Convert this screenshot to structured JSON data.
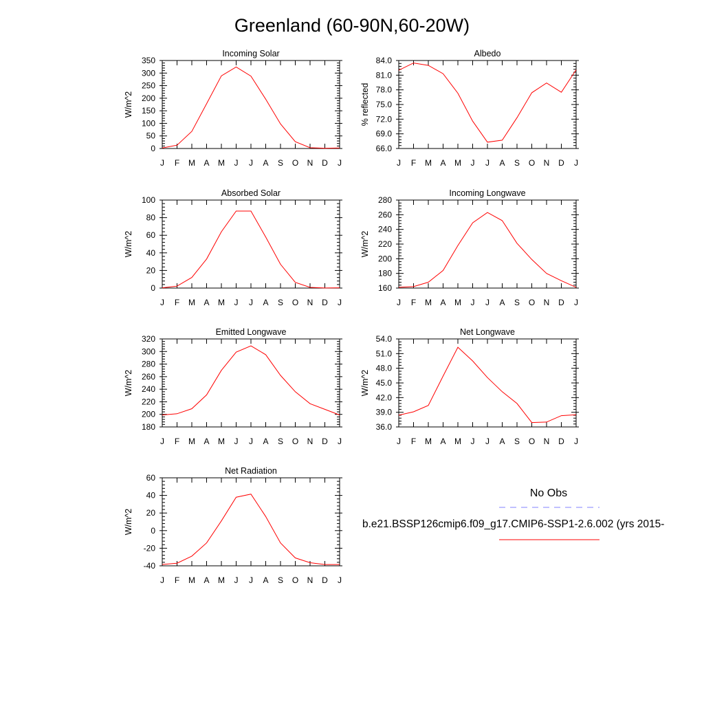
{
  "figure": {
    "title": "Greenland (60-90N,60-20W)",
    "months": [
      "J",
      "F",
      "M",
      "A",
      "M",
      "J",
      "J",
      "A",
      "S",
      "O",
      "N",
      "D",
      "J"
    ],
    "legend": {
      "obs_label": "No Obs",
      "obs_color": "#8080ff",
      "model_label": "b.e21.BSSP126cmip6.f09_g17.CMIP6-SSP1-2.6.002 (yrs 2015-",
      "model_color": "#ff0000"
    }
  },
  "chart_data": [
    {
      "type": "line",
      "title": "Incoming Solar",
      "ylabel": "W/m^2",
      "ylim": [
        0,
        350
      ],
      "yticks": [
        "0",
        "50",
        "100",
        "150",
        "200",
        "250",
        "300",
        "350"
      ],
      "series": [
        {
          "values": [
            2,
            13,
            68,
            178,
            289,
            324,
            288,
            196,
            98,
            27,
            3,
            1,
            2
          ]
        }
      ]
    },
    {
      "type": "line",
      "title": "Albedo",
      "ylabel": "% reflected",
      "ylim": [
        66.0,
        84.0
      ],
      "yticks": [
        "66.0",
        "69.0",
        "72.0",
        "75.0",
        "78.0",
        "81.0",
        "84.0"
      ],
      "series": [
        {
          "values": [
            82.0,
            83.5,
            83.0,
            81.3,
            77.3,
            71.6,
            67.3,
            67.7,
            72.3,
            77.4,
            79.4,
            77.5,
            82.1
          ]
        }
      ]
    },
    {
      "type": "line",
      "title": "Absorbed Solar",
      "ylabel": "W/m^2",
      "ylim": [
        0,
        100
      ],
      "yticks": [
        "0",
        "20",
        "40",
        "60",
        "80",
        "100"
      ],
      "series": [
        {
          "values": [
            0.3,
            2.2,
            12.0,
            33.0,
            64.0,
            87.5,
            87.5,
            58.0,
            27.0,
            6.5,
            0.8,
            0.1,
            0.3
          ]
        }
      ]
    },
    {
      "type": "line",
      "title": "Incoming Longwave",
      "ylabel": "W/m^2",
      "ylim": [
        160,
        280
      ],
      "yticks": [
        "160",
        "180",
        "200",
        "220",
        "240",
        "260",
        "280"
      ],
      "series": [
        {
          "values": [
            161,
            162,
            168,
            184,
            218,
            249,
            263,
            252,
            221,
            199,
            180,
            170,
            161
          ]
        }
      ]
    },
    {
      "type": "line",
      "title": "Emitted Longwave",
      "ylabel": "W/m^2",
      "ylim": [
        180,
        320
      ],
      "yticks": [
        "180",
        "200",
        "220",
        "240",
        "260",
        "280",
        "300",
        "320"
      ],
      "series": [
        {
          "values": [
            199,
            201,
            209,
            231,
            270,
            299,
            309,
            295,
            262,
            236,
            217,
            208,
            199
          ]
        }
      ]
    },
    {
      "type": "line",
      "title": "Net Longwave",
      "ylabel": "W/m^2",
      "ylim": [
        36.0,
        54.0
      ],
      "yticks": [
        "36.0",
        "39.0",
        "42.0",
        "45.0",
        "48.0",
        "51.0",
        "54.0"
      ],
      "series": [
        {
          "values": [
            38.4,
            39.1,
            40.4,
            46.4,
            52.3,
            49.5,
            46.1,
            43.2,
            40.8,
            36.9,
            37.0,
            38.3,
            38.5
          ]
        }
      ]
    },
    {
      "type": "line",
      "title": "Net Radiation",
      "ylabel": "W/m^2",
      "ylim": [
        -40,
        60
      ],
      "yticks": [
        "-40",
        "-20",
        "0",
        "20",
        "40",
        "60"
      ],
      "series": [
        {
          "values": [
            -38.5,
            -37,
            -29,
            -14,
            11,
            38,
            41.5,
            16,
            -14,
            -31,
            -36.5,
            -38.5,
            -38.5
          ]
        }
      ]
    }
  ]
}
